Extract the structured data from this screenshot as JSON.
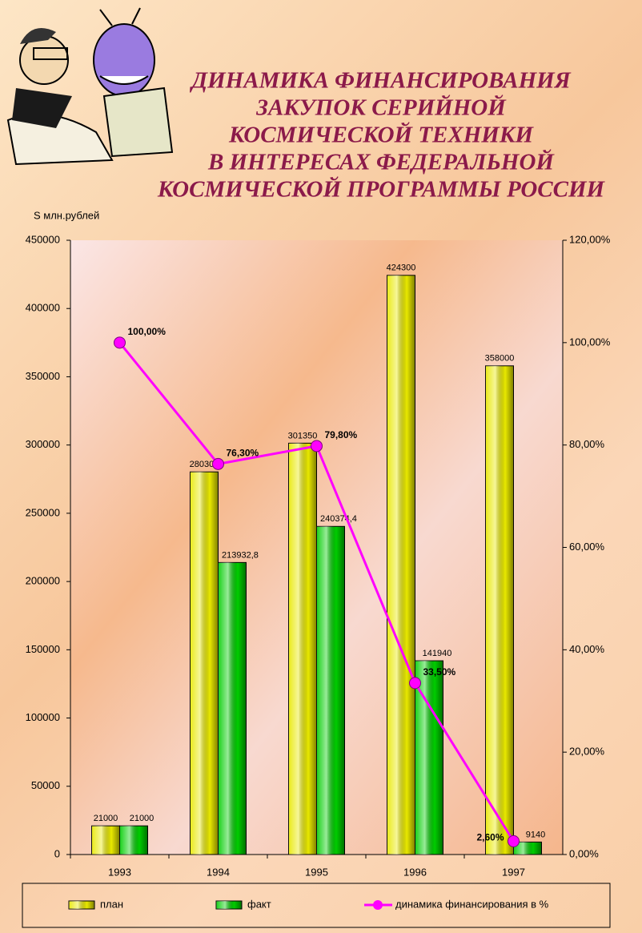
{
  "chart_data": {
    "type": "bar",
    "title": [
      "ДИНАМИКА ФИНАНСИРОВАНИЯ",
      "ЗАКУПОК СЕРИЙНОЙ",
      "КОСМИЧЕСКОЙ ТЕХНИКИ",
      "В ИНТЕРЕСАХ ФЕДЕРАЛЬНОЙ",
      "КОСМИЧЕСКОЙ ПРОГРАММЫ РОССИИ"
    ],
    "y_label": "S млн.рублей",
    "categories": [
      "1993",
      "1994",
      "1995",
      "1996",
      "1997"
    ],
    "series": [
      {
        "name": "план",
        "color": "#e8e800",
        "values": [
          21000,
          280300,
          301350,
          424300,
          358000
        ]
      },
      {
        "name": "факт",
        "color": "#00cc00",
        "values": [
          21000,
          213932.8,
          240374.4,
          141940,
          9140
        ],
        "value_labels": [
          "21000",
          "213932,8",
          "240374,4",
          "141940",
          "9140"
        ]
      },
      {
        "name": "динамика финансирования в %",
        "type": "line",
        "axis": "y2",
        "color": "#ff00ff",
        "values": [
          100,
          76.3,
          79.8,
          33.5,
          2.6
        ],
        "value_labels": [
          "100,00%",
          "76,30%",
          "79,80%",
          "33,50%",
          "2,60%"
        ]
      }
    ],
    "ylim": [
      0,
      450000
    ],
    "yticks": [
      0,
      50000,
      100000,
      150000,
      200000,
      250000,
      300000,
      350000,
      400000,
      450000
    ],
    "y2lim": [
      0,
      120
    ],
    "y2ticks": [
      {
        "value": 0,
        "label": "0,00%"
      },
      {
        "value": 20,
        "label": "20,00%"
      },
      {
        "value": 40,
        "label": "40,00%"
      },
      {
        "value": 60,
        "label": "60,00%"
      },
      {
        "value": 80,
        "label": "80,00%"
      },
      {
        "value": 100,
        "label": "100,00%"
      },
      {
        "value": 120,
        "label": "120,00%"
      }
    ],
    "grid": false,
    "legend": "bottom"
  }
}
